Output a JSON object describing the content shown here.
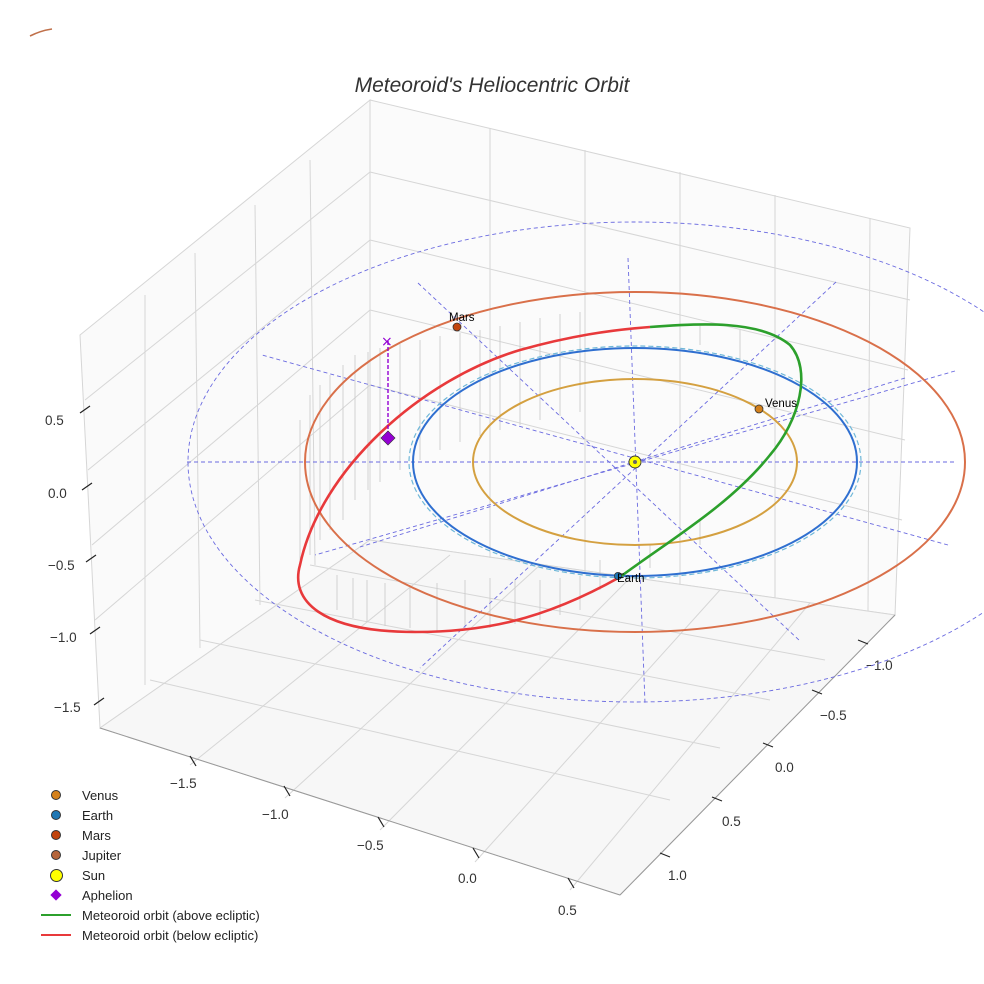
{
  "chart_data": {
    "type": "line3d",
    "title": "Meteoroid's Heliocentric Orbit",
    "axes": {
      "x_ticks": [
        "−1.5",
        "−1.0",
        "−0.5",
        "0.0",
        "0.5"
      ],
      "y_ticks": [
        "−1.0",
        "−0.5",
        "0.0",
        "0.5",
        "1.0"
      ],
      "z_ticks": [
        "0.5",
        "0.0",
        "−0.5",
        "−1.0",
        "−1.5"
      ],
      "grid": true
    },
    "bodies": [
      {
        "name": "Venus",
        "label": "Venus",
        "color": "#d4811c",
        "orbit_color": "#d4a040",
        "orbit_radius_au": 0.72
      },
      {
        "name": "Earth",
        "label": "Earth",
        "color": "#1f77b4",
        "orbit_color": "#2f6fd0",
        "orbit_radius_au": 1.0
      },
      {
        "name": "Mars",
        "label": "Mars",
        "color": "#c1440e",
        "orbit_color": "#d9704a",
        "orbit_radius_au": 1.52
      },
      {
        "name": "Jupiter",
        "label": "",
        "color": "#b5653b",
        "orbit_color": "#c0704a",
        "orbit_radius_au": 5.2
      }
    ],
    "sun": {
      "name": "Sun",
      "color": "#ffff00"
    },
    "aphelion": {
      "name": "Aphelion",
      "color": "#9400d3"
    },
    "series": [
      {
        "name": "Meteoroid orbit (above ecliptic)",
        "color": "#2ca02c"
      },
      {
        "name": "Meteoroid orbit (below ecliptic)",
        "color": "#e8393b"
      }
    ],
    "reference_grid_color": "#6a6ae0",
    "legend_position": "lower-left"
  },
  "legend": {
    "items": [
      {
        "label": "Venus",
        "kind": "dot",
        "color": "#d4811c"
      },
      {
        "label": "Earth",
        "kind": "dot",
        "color": "#1f77b4"
      },
      {
        "label": "Mars",
        "kind": "dot",
        "color": "#c1440e"
      },
      {
        "label": "Jupiter",
        "kind": "dot",
        "color": "#b5653b"
      },
      {
        "label": "Sun",
        "kind": "bigdot",
        "color": "#ffff00"
      },
      {
        "label": "Aphelion",
        "kind": "diamond",
        "color": "#9400d3"
      },
      {
        "label": "Meteoroid orbit (above ecliptic)",
        "kind": "line",
        "color": "#2ca02c"
      },
      {
        "label": "Meteoroid orbit (below ecliptic)",
        "kind": "line",
        "color": "#e8393b"
      }
    ]
  }
}
